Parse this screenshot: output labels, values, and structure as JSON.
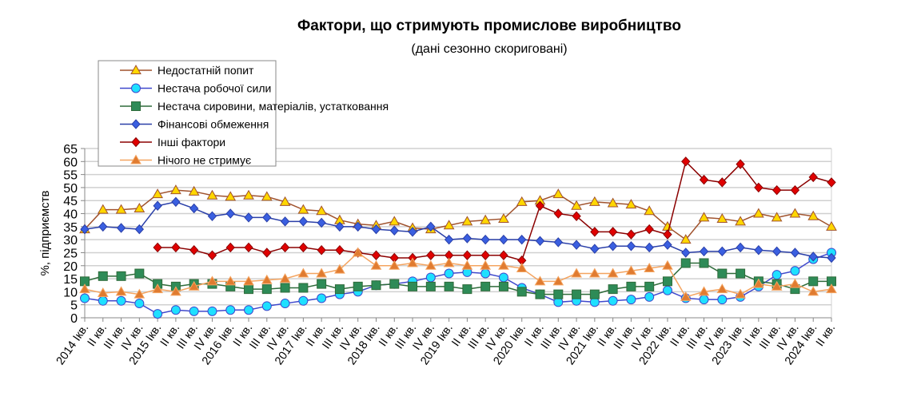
{
  "chart_data": {
    "type": "line",
    "title": "Фактори, що стримують промислове виробництво",
    "subtitle": "(дані сезонно скориговані)",
    "ylabel": "%, підприємств",
    "xlabel": "",
    "ylim": [
      0,
      65
    ],
    "yticks": [
      0,
      5,
      10,
      15,
      20,
      25,
      30,
      35,
      40,
      45,
      50,
      55,
      60,
      65
    ],
    "grid": true,
    "legend_placement": "top-left",
    "categories": [
      "2014 Iкв.",
      "II кв.",
      "III кв.",
      "IV кв.",
      "2015 Iкв.",
      "II кв.",
      "III кв.",
      "IV кв.",
      "2016 Iкв.",
      "II кв.",
      "III кв.",
      "IV кв.",
      "2017 Iкв.",
      "II кв.",
      "III кв.",
      "IV кв.",
      "2018 Iкв.",
      "II кв.",
      "III кв.",
      "IV кв.",
      "2019 Iкв.",
      "II кв.",
      "III кв.",
      "IV кв.",
      "2020 Iкв.",
      "II кв.",
      "III кв.",
      "IV кв.",
      "2021 Iкв.",
      "II кв.",
      "III кв.",
      "IV кв.",
      "2022 Iкв.",
      "II кв.",
      "III кв.",
      "IV кв.",
      "2023 Iкв.",
      "II кв.",
      "III кв.",
      "IV кв.",
      "2024 Iкв.",
      "II кв."
    ],
    "series": [
      {
        "name": "Недостатній попит",
        "marker": "triangle",
        "line_color": "#A0522D",
        "fill_color": "#FFD700",
        "values": [
          34,
          41.5,
          41.5,
          42,
          47.5,
          49,
          48.5,
          47,
          46.5,
          47,
          46.5,
          44.5,
          41.5,
          41,
          37.5,
          36,
          35.5,
          37,
          34.5,
          34,
          35.5,
          37,
          37.5,
          38,
          44.5,
          45,
          47.5,
          43,
          44.5,
          44,
          43.5,
          41,
          35,
          30,
          38.5,
          38,
          37,
          40,
          38.5,
          40,
          39,
          35
        ]
      },
      {
        "name": "Нестача робочої сили",
        "marker": "circle",
        "line_color": "#3F48CC",
        "fill_color": "#1EE0FF",
        "values": [
          7.5,
          6.5,
          6.5,
          5.5,
          1.5,
          3,
          2.5,
          2.5,
          3,
          3,
          4.5,
          5.5,
          6.5,
          7.5,
          9,
          10,
          12.5,
          13,
          14,
          15.5,
          17,
          17.5,
          17,
          15.5,
          11.5,
          9,
          6,
          6.5,
          6,
          6.5,
          7,
          8,
          10.5,
          7.5,
          7,
          7,
          8,
          12,
          16.5,
          18,
          22.5,
          25
        ]
      },
      {
        "name": "Нестача сировини, матеріалів, устатковання",
        "marker": "square",
        "line_color": "#2E6B3A",
        "fill_color": "#2E8B57",
        "values": [
          14,
          16,
          16,
          17,
          13,
          12,
          13,
          13,
          12,
          11,
          11,
          11.5,
          11.5,
          13,
          11,
          12,
          12.5,
          13,
          12,
          12,
          12,
          11,
          12,
          12,
          10,
          9,
          9,
          9,
          9,
          11,
          12,
          12,
          14,
          21,
          21,
          17,
          17,
          14,
          13,
          11,
          14,
          14
        ]
      },
      {
        "name": "Фінансові обмеження",
        "marker": "diamond",
        "line_color": "#2A3FA8",
        "fill_color": "#3A5FE0",
        "values": [
          34,
          35,
          34.5,
          34,
          43,
          44.5,
          42,
          39,
          40,
          38.5,
          38.5,
          37,
          37,
          36.5,
          35,
          35,
          34,
          33.5,
          33,
          35,
          30,
          30.5,
          30,
          30,
          30,
          29.5,
          29,
          28,
          26.5,
          27.5,
          27.5,
          27,
          28,
          25,
          25.5,
          25.5,
          27,
          26,
          25.5,
          25,
          23.5,
          23
        ]
      },
      {
        "name": "Інші фактори",
        "marker": "diamond",
        "line_color": "#8B0000",
        "fill_color": "#E00000",
        "values": [
          null,
          null,
          null,
          null,
          27,
          27,
          26,
          24,
          27,
          27,
          25,
          27,
          27,
          26,
          26,
          25,
          24,
          23,
          23,
          24,
          24,
          24,
          24,
          24,
          22,
          43,
          40,
          39,
          33,
          33,
          32,
          34,
          32,
          60,
          53,
          52,
          59,
          50,
          49,
          49,
          54,
          52
        ]
      },
      {
        "name": "Нічого не стримує",
        "marker": "triangle",
        "line_color": "#F4A460",
        "fill_color": "#E07B30",
        "values": [
          11,
          9.5,
          10,
          9,
          11,
          10,
          12,
          14,
          14,
          14,
          14.5,
          15,
          17,
          17,
          18.5,
          25,
          20,
          20,
          21,
          20,
          21,
          20,
          20,
          20,
          19,
          14,
          14,
          17,
          17,
          17,
          18,
          19,
          20,
          8,
          10,
          11,
          9,
          13,
          12,
          13,
          10,
          11
        ]
      }
    ]
  }
}
